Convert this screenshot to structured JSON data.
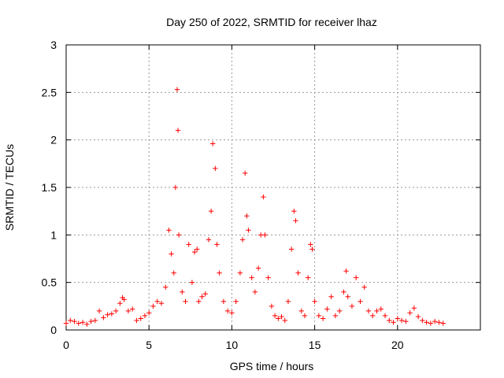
{
  "chart_data": {
    "type": "scatter",
    "title": "Day 250 of 2022, SRMTID for receiver lhaz",
    "xlabel": "GPS time / hours",
    "ylabel": "SRMTID / TECUs",
    "xlim": [
      0,
      25
    ],
    "ylim": [
      0,
      3
    ],
    "xticks": [
      0,
      5,
      10,
      15,
      20
    ],
    "xtick_labels": [
      "0",
      "5",
      "10",
      "15",
      "20"
    ],
    "yticks": [
      0,
      0.5,
      1,
      1.5,
      2,
      2.5,
      3
    ],
    "ytick_labels": [
      "0",
      "0.5",
      "1",
      "1.5",
      "2",
      "2.5",
      "3"
    ],
    "grid": true,
    "marker": "plus",
    "color": "#ff0000",
    "series": [
      {
        "name": "SRMTID",
        "x": [
          0.0,
          0.25,
          0.5,
          0.75,
          1.0,
          1.25,
          1.5,
          1.75,
          2.0,
          2.25,
          2.5,
          2.75,
          3.0,
          3.25,
          3.4,
          3.5,
          3.75,
          4.0,
          4.25,
          4.5,
          4.75,
          5.0,
          5.25,
          5.5,
          5.75,
          6.0,
          6.2,
          6.35,
          6.5,
          6.6,
          6.7,
          6.75,
          6.8,
          7.0,
          7.2,
          7.4,
          7.6,
          7.75,
          7.9,
          8.0,
          8.2,
          8.4,
          8.6,
          8.75,
          8.85,
          9.0,
          9.1,
          9.25,
          9.5,
          9.75,
          10.0,
          10.25,
          10.5,
          10.65,
          10.8,
          10.9,
          11.0,
          11.2,
          11.4,
          11.6,
          11.75,
          11.9,
          12.0,
          12.2,
          12.4,
          12.6,
          12.8,
          13.0,
          13.2,
          13.4,
          13.6,
          13.75,
          13.85,
          14.0,
          14.2,
          14.4,
          14.6,
          14.75,
          14.85,
          15.0,
          15.25,
          15.5,
          15.75,
          16.0,
          16.25,
          16.5,
          16.75,
          16.9,
          17.0,
          17.25,
          17.5,
          17.75,
          18.0,
          18.25,
          18.5,
          18.75,
          19.0,
          19.25,
          19.5,
          19.75,
          20.0,
          20.25,
          20.5,
          20.75,
          21.0,
          21.25,
          21.5,
          21.75,
          22.0,
          22.25,
          22.5,
          22.75
        ],
        "y": [
          0.07,
          0.1,
          0.09,
          0.07,
          0.08,
          0.06,
          0.09,
          0.1,
          0.2,
          0.13,
          0.16,
          0.17,
          0.2,
          0.28,
          0.34,
          0.32,
          0.2,
          0.22,
          0.1,
          0.12,
          0.15,
          0.18,
          0.25,
          0.3,
          0.28,
          0.45,
          1.05,
          0.8,
          0.6,
          1.5,
          2.53,
          2.1,
          1.0,
          0.4,
          0.3,
          0.9,
          0.5,
          0.82,
          0.85,
          0.3,
          0.35,
          0.38,
          0.95,
          1.25,
          1.96,
          1.7,
          0.9,
          0.6,
          0.3,
          0.2,
          0.18,
          0.3,
          0.6,
          0.95,
          1.65,
          1.2,
          1.05,
          0.55,
          0.4,
          0.65,
          1.0,
          1.4,
          1.0,
          0.55,
          0.25,
          0.15,
          0.12,
          0.14,
          0.1,
          0.3,
          0.85,
          1.25,
          1.15,
          0.6,
          0.2,
          0.15,
          0.55,
          0.9,
          0.85,
          0.3,
          0.15,
          0.12,
          0.22,
          0.35,
          0.15,
          0.2,
          0.4,
          0.62,
          0.35,
          0.25,
          0.55,
          0.3,
          0.45,
          0.2,
          0.15,
          0.2,
          0.22,
          0.15,
          0.1,
          0.08,
          0.12,
          0.1,
          0.09,
          0.18,
          0.23,
          0.14,
          0.1,
          0.08,
          0.07,
          0.09,
          0.08,
          0.07
        ]
      }
    ]
  }
}
